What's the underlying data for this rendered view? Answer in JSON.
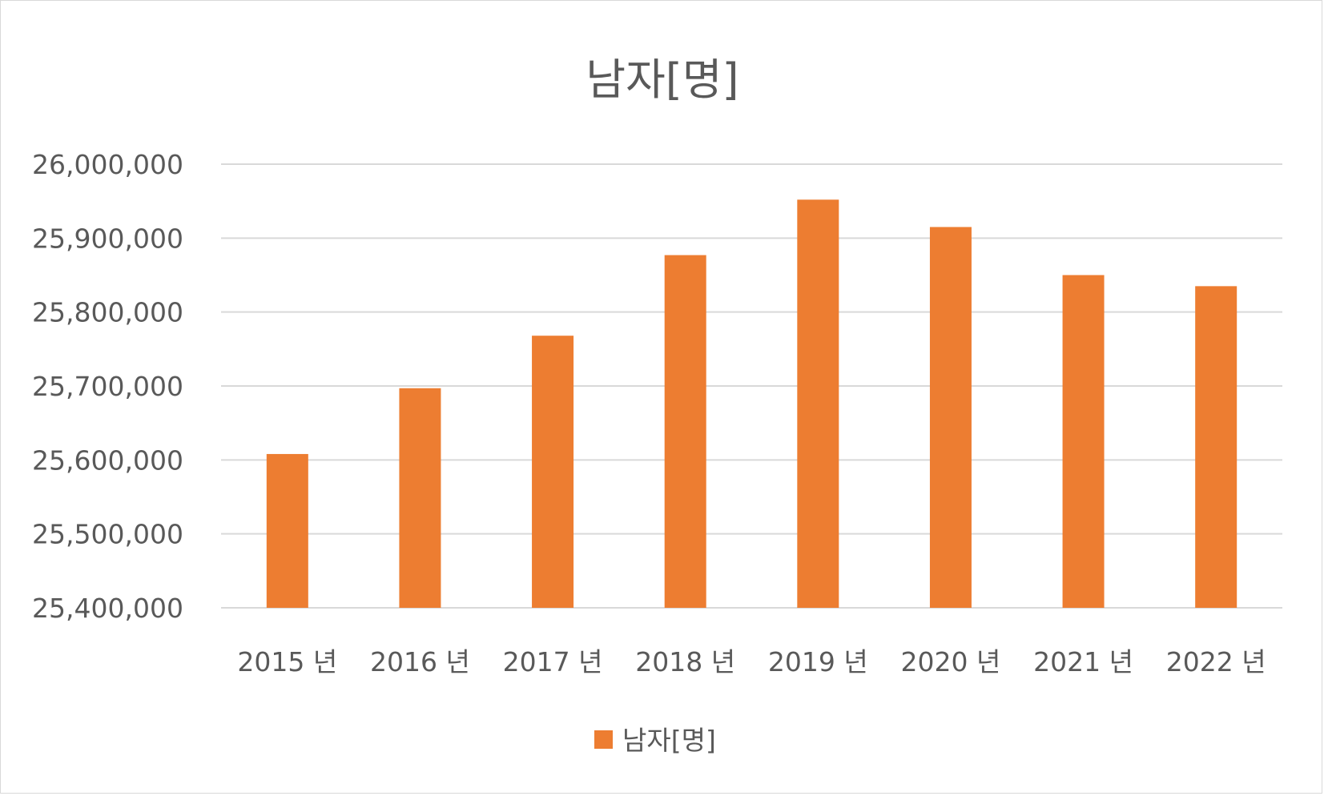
{
  "chart_data": {
    "type": "bar",
    "title": "남자[명]",
    "categories": [
      "2015 년",
      "2016 년",
      "2017 년",
      "2018 년",
      "2019 년",
      "2020 년",
      "2021 년",
      "2022 년"
    ],
    "series": [
      {
        "name": "남자[명]",
        "color": "#ed7d31",
        "values": [
          25608000,
          25697000,
          25768000,
          25877000,
          25952000,
          25915000,
          25850000,
          25835000
        ]
      }
    ],
    "y_ticks": [
      "25,400,000",
      "25,500,000",
      "25,600,000",
      "25,700,000",
      "25,800,000",
      "25,900,000",
      "26,000,000"
    ],
    "ylim": [
      25400000,
      26000000
    ],
    "y_step": 100000,
    "grid": true,
    "gridline_color": "#d9d9d9",
    "legend_position": "bottom"
  }
}
